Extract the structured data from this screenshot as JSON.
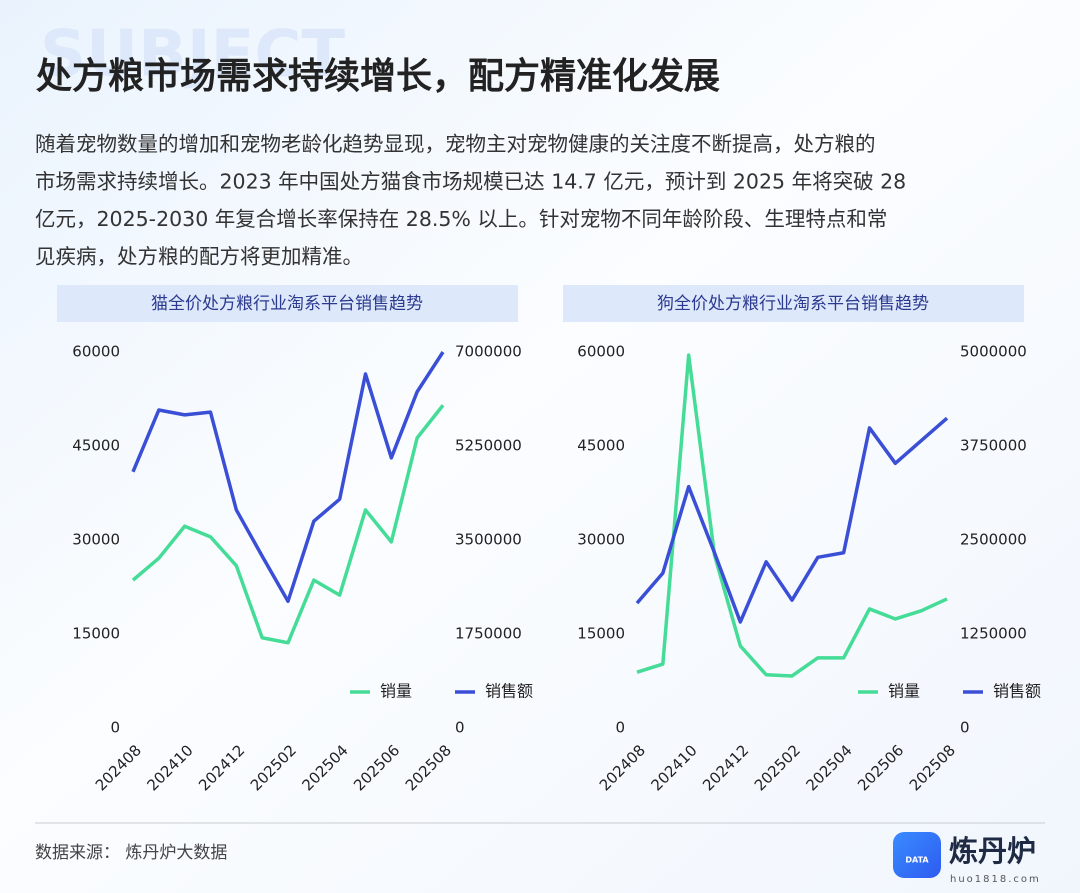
{
  "watermark": "SUBJECT",
  "title": "处方粮市场需求持续增长，配方精准化发展",
  "paragraph": [
    "随着宠物数量的增加和宠物老龄化趋势显现，宠物主对宠物健康的关注度不断提高，处方粮的",
    "市场需求持续增长。2023 年中国处方猫食市场规模已达 14.7 亿元，预计到 2025 年将突破 28",
    "亿元，2025-2030  年复合增长率保持在  28.5%  以上。针对宠物不同年龄阶段、生理特点和常",
    "见疾病，处方粮的配方将更加精准。"
  ],
  "chart_data": [
    {
      "type": "line",
      "title": "猫全价处方粮行业淘系平台销售趋势",
      "categories": [
        "202408",
        null,
        "202410",
        null,
        "202412",
        null,
        "202502",
        null,
        "202504",
        null,
        "202506",
        null,
        "202508"
      ],
      "series": [
        {
          "name": "销量",
          "color": "#45dc97",
          "values": [
            23600,
            27100,
            32200,
            30500,
            25900,
            14400,
            13600,
            23600,
            21200,
            34800,
            29700,
            46300,
            51500
          ]
        },
        {
          "name": "销售额",
          "color": "#3a4fd6",
          "axis": "y2",
          "values": [
            4770000,
            5920000,
            5830000,
            5880000,
            4060000,
            3200000,
            2360000,
            3850000,
            4260000,
            6590000,
            5030000,
            6260000,
            7000000
          ]
        }
      ],
      "ylim": [
        0,
        60000
      ],
      "yticks": [
        0,
        15000,
        30000,
        45000,
        60000
      ],
      "y2lim": [
        0,
        7000000
      ],
      "y2ticks": [
        0,
        1750000,
        3500000,
        5250000,
        7000000
      ],
      "legend": "lower right",
      "grid": false
    },
    {
      "type": "line",
      "title": "狗全价处方粮行业淘系平台销售趋势",
      "categories": [
        "202408",
        null,
        "202410",
        null,
        "202412",
        null,
        "202502",
        null,
        "202504",
        null,
        "202506",
        null,
        "202508"
      ],
      "series": [
        {
          "name": "销量",
          "color": "#45dc97",
          "values": [
            8900,
            10200,
            59500,
            27600,
            13100,
            8500,
            8300,
            11200,
            11200,
            19000,
            17400,
            18700,
            20600
          ]
        },
        {
          "name": "销售额",
          "color": "#3a4fd6",
          "axis": "y2",
          "values": [
            1660000,
            2060000,
            3210000,
            2330000,
            1410000,
            2210000,
            1700000,
            2270000,
            2330000,
            3990000,
            3520000,
            3820000,
            4120000
          ]
        }
      ],
      "ylim": [
        0,
        60000
      ],
      "yticks": [
        0,
        15000,
        30000,
        45000,
        60000
      ],
      "y2lim": [
        0,
        5000000
      ],
      "y2ticks": [
        0,
        1250000,
        2500000,
        3750000,
        5000000
      ],
      "legend": "lower right",
      "grid": false
    }
  ],
  "source": "数据来源：  炼丹炉大数据",
  "logo": {
    "icon_text": "DATA",
    "name": "炼丹炉",
    "url": "huo1818.com"
  }
}
